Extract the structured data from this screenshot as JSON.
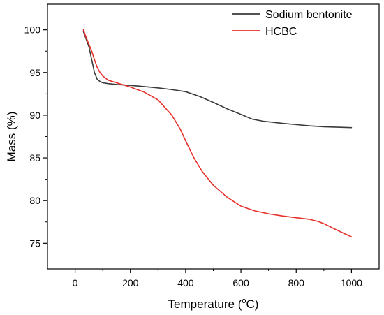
{
  "chart_data": {
    "type": "line",
    "title": "",
    "xlabel": "Temperature (",
    "xlabel_sup": "o",
    "xlabel_unit": "C)",
    "ylabel": "Mass (%)",
    "xlim": [
      -100,
      1100
    ],
    "ylim": [
      72,
      103
    ],
    "xticks": [
      0,
      200,
      400,
      600,
      800,
      1000
    ],
    "yticks": [
      75,
      80,
      85,
      90,
      95,
      100
    ],
    "grid": false,
    "legend_position": "top-right",
    "series": [
      {
        "name": "Sodium bentonite",
        "color": "#3a3a3a",
        "x": [
          30,
          40,
          50,
          60,
          70,
          80,
          90,
          100,
          120,
          150,
          200,
          250,
          300,
          350,
          400,
          450,
          500,
          550,
          600,
          640,
          680,
          750,
          800,
          850,
          900,
          950,
          1000
        ],
        "y": [
          99.8,
          98.9,
          98.0,
          96.5,
          95.0,
          94.2,
          93.95,
          93.8,
          93.7,
          93.6,
          93.5,
          93.35,
          93.2,
          93.0,
          92.75,
          92.2,
          91.5,
          90.75,
          90.1,
          89.55,
          89.3,
          89.05,
          88.9,
          88.75,
          88.65,
          88.6,
          88.55
        ]
      },
      {
        "name": "HCBC",
        "color": "#e8302a",
        "x": [
          30,
          40,
          50,
          60,
          70,
          80,
          90,
          100,
          120,
          150,
          200,
          250,
          300,
          350,
          380,
          400,
          430,
          460,
          500,
          550,
          600,
          650,
          700,
          750,
          800,
          850,
          880,
          900,
          950,
          1000
        ],
        "y": [
          100,
          99.1,
          98.3,
          97.5,
          96.5,
          95.6,
          95.0,
          94.6,
          94.1,
          93.8,
          93.3,
          92.7,
          91.8,
          90.0,
          88.4,
          87.0,
          85.0,
          83.4,
          81.8,
          80.4,
          79.35,
          78.8,
          78.45,
          78.2,
          78.0,
          77.8,
          77.55,
          77.3,
          76.5,
          75.75
        ]
      }
    ]
  }
}
